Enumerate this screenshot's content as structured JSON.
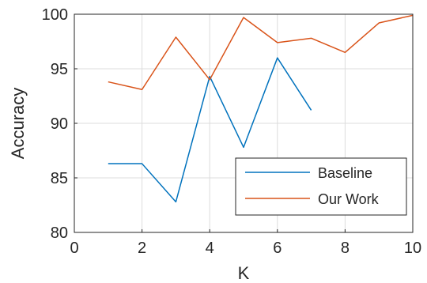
{
  "chart_data": {
    "type": "line",
    "xlabel": "K",
    "ylabel": "Accuracy",
    "xlim": [
      0,
      10
    ],
    "ylim": [
      80,
      100
    ],
    "xticks": [
      0,
      2,
      4,
      6,
      8,
      10
    ],
    "yticks": [
      80,
      85,
      90,
      95,
      100
    ],
    "grid": true,
    "legend_position": "bottom-right",
    "series": [
      {
        "name": "Baseline",
        "color": "#0072BD",
        "x": [
          1,
          2,
          3,
          4,
          5,
          6,
          7
        ],
        "y": [
          86.3,
          86.3,
          82.8,
          94.3,
          87.8,
          96.0,
          91.2
        ]
      },
      {
        "name": "Our Work",
        "color": "#D95319",
        "x": [
          1,
          2,
          3,
          4,
          5,
          6,
          7,
          8,
          9,
          10
        ],
        "y": [
          93.8,
          93.1,
          97.9,
          94.0,
          99.7,
          97.4,
          97.8,
          96.5,
          99.2,
          99.9
        ]
      }
    ]
  }
}
